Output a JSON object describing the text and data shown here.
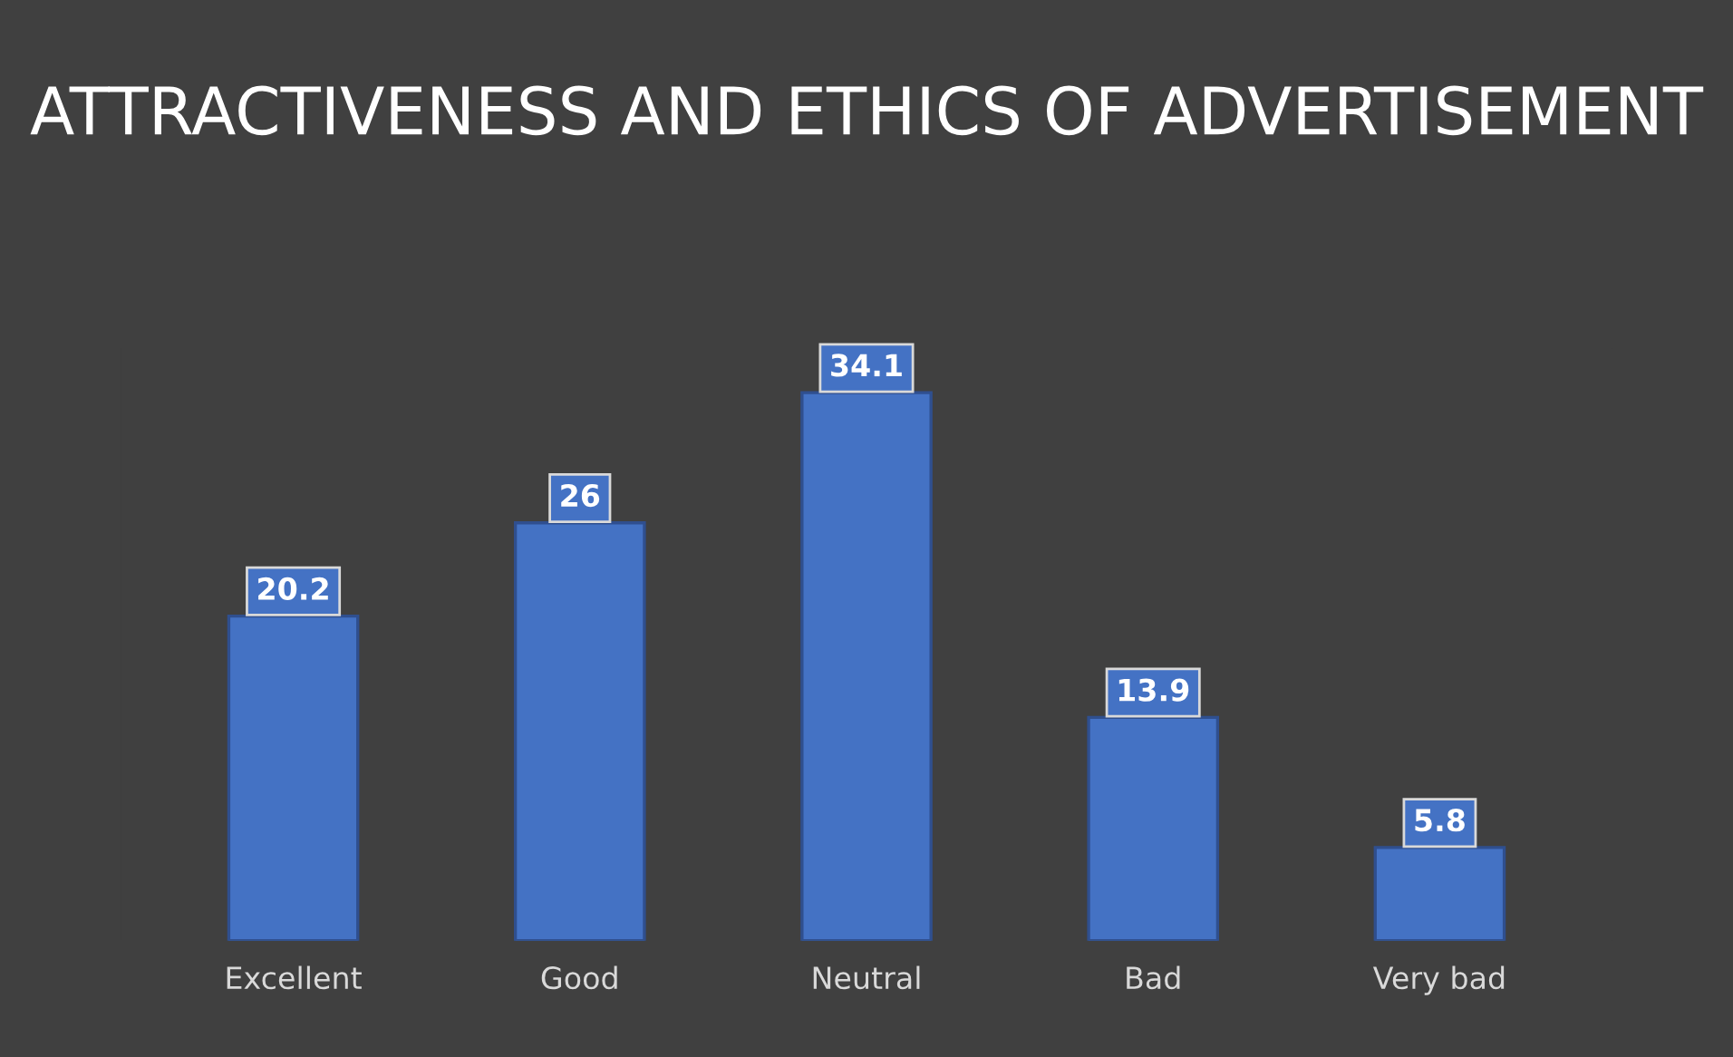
{
  "chart_data": {
    "type": "bar",
    "title": "ATTRACTIVENESS AND ETHICS OF ADVERTISEMENT",
    "categories": [
      "Excellent",
      "Good",
      "Neutral",
      "Bad",
      "Very bad"
    ],
    "values": [
      20.2,
      26,
      34.1,
      13.9,
      5.8
    ],
    "color": "#4472c4",
    "data_labels": true
  }
}
